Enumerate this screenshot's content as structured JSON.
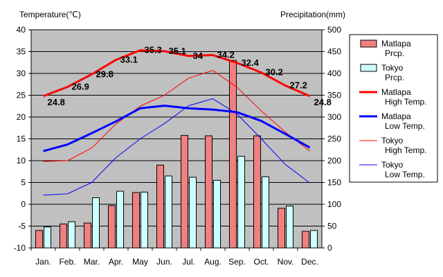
{
  "chart_data": {
    "type": "bar",
    "left_axis_title": "Temperature(℃)",
    "right_axis_title": "Precipitation(mm)",
    "categories": [
      "Jan.",
      "Feb.",
      "Mar.",
      "Apr.",
      "May",
      "Jun.",
      "Jul.",
      "Aug.",
      "Sep.",
      "Oct.",
      "Nov.",
      "Dec."
    ],
    "left_axis": {
      "ylim": [
        -10,
        40
      ],
      "ticks": [
        "-10",
        "-5",
        "0",
        "5",
        "10",
        "15",
        "20",
        "25",
        "30",
        "35",
        "40"
      ]
    },
    "right_axis": {
      "ylim": [
        0,
        500
      ],
      "ticks": [
        "0",
        "50",
        "100",
        "150",
        "200",
        "250",
        "300",
        "350",
        "400",
        "450",
        "500"
      ]
    },
    "bar_series": [
      {
        "name": "Matlapa Prcp.",
        "axis": "right",
        "color": "#f08080",
        "values": [
          40,
          55,
          57,
          97,
          127,
          190,
          258,
          257,
          430,
          257,
          91,
          38
        ]
      },
      {
        "name": "Tokyo Prcp.",
        "axis": "right",
        "color": "#ccffff",
        "values": [
          48,
          60,
          115,
          130,
          128,
          165,
          162,
          155,
          210,
          163,
          96,
          40
        ]
      }
    ],
    "line_series": [
      {
        "name": "Matlapa High Temp.",
        "axis": "left",
        "color": "#ff0000",
        "width": 3,
        "values": [
          24.8,
          26.9,
          29.8,
          33.1,
          35.3,
          35.1,
          34.0,
          34.2,
          32.4,
          30.2,
          27.2,
          24.8
        ],
        "labels": [
          "24.8",
          "26.9",
          "29.8",
          "33.1",
          "35.3",
          "35.1",
          "34",
          "34.2",
          "32.4",
          "30.2",
          "27.2",
          "24.8"
        ]
      },
      {
        "name": "Matlapa Low Temp.",
        "axis": "left",
        "color": "#0000ff",
        "width": 3,
        "values": [
          12.2,
          13.7,
          16.3,
          19.0,
          22.0,
          22.6,
          22.0,
          21.7,
          21.1,
          19.1,
          16.1,
          13.0
        ]
      },
      {
        "name": "Tokyo High Temp.",
        "axis": "left",
        "color": "#ff0000",
        "width": 1,
        "values": [
          9.8,
          10.0,
          12.9,
          18.4,
          22.5,
          25.0,
          28.9,
          30.7,
          26.8,
          21.4,
          16.5,
          12.2
        ]
      },
      {
        "name": "Tokyo Low Temp.",
        "axis": "left",
        "color": "#0000ff",
        "width": 1,
        "values": [
          2.1,
          2.4,
          5.0,
          10.7,
          15.0,
          18.5,
          22.6,
          24.2,
          20.7,
          15.0,
          9.1,
          4.9
        ]
      }
    ],
    "legend": [
      {
        "label1": "Matlapa",
        "label2": "Prcp.",
        "kind": "bar",
        "color": "#f08080"
      },
      {
        "label1": "Tokyo",
        "label2": "Prcp.",
        "kind": "bar",
        "color": "#ccffff"
      },
      {
        "label1": "Matlapa",
        "label2": "High Temp.",
        "kind": "line",
        "color": "#ff0000",
        "width": 3
      },
      {
        "label1": "Matlapa",
        "label2": "Low Temp.",
        "kind": "line",
        "color": "#0000ff",
        "width": 3
      },
      {
        "label1": "Tokyo",
        "label2": "High Temp.",
        "kind": "line",
        "color": "#ff0000",
        "width": 1
      },
      {
        "label1": "Tokyo",
        "label2": "Low Temp.",
        "kind": "line",
        "color": "#0000ff",
        "width": 1
      }
    ],
    "legend_position": "right",
    "plot_background": "#c0c0c0",
    "grid": true
  }
}
